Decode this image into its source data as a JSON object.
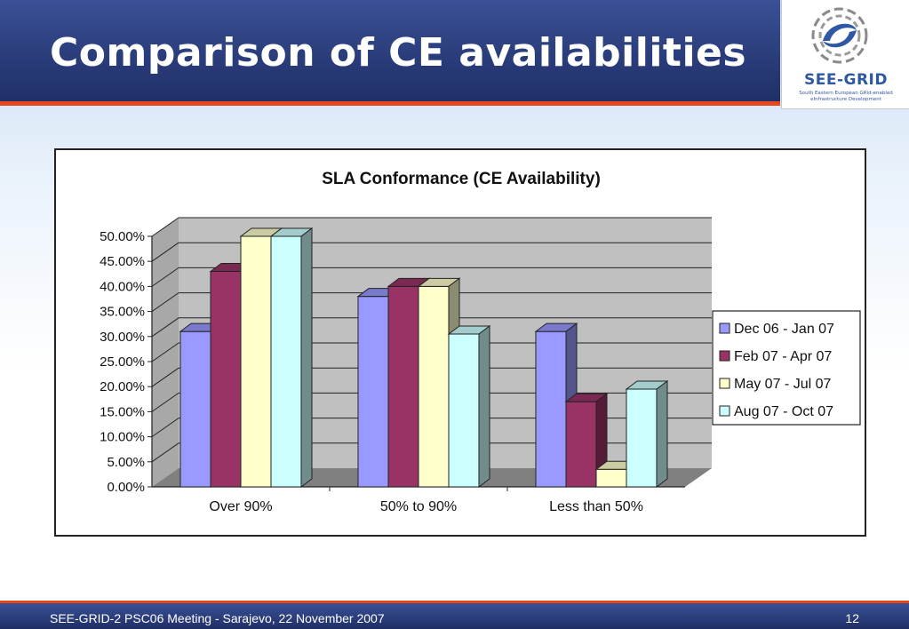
{
  "slide": {
    "title": "Comparison of CE availabilities",
    "footer": "SEE-GRID-2 PSC06 Meeting - Sarajevo, 22 November 2007",
    "page_number": "12"
  },
  "logo": {
    "name": "SEE-GRID",
    "subtitle_line1": "South Eastern European GRid-enabled",
    "subtitle_line2": "eInfrastructure Development"
  },
  "chart_data": {
    "type": "bar",
    "title": "SLA Conformance (CE Availability)",
    "xlabel": "",
    "ylabel": "",
    "categories": [
      "Over 90%",
      "50% to 90%",
      "Less than 50%"
    ],
    "series": [
      {
        "name": "Dec 06 - Jan 07",
        "color": "#9999ff",
        "values": [
          0.31,
          0.38,
          0.31
        ]
      },
      {
        "name": "Feb 07 - Apr 07",
        "color": "#993366",
        "values": [
          0.43,
          0.4,
          0.17
        ]
      },
      {
        "name": "May 07 - Jul 07",
        "color": "#ffffcc",
        "values": [
          0.5,
          0.4,
          0.035
        ]
      },
      {
        "name": "Aug 07 - Oct 07",
        "color": "#ccffff",
        "values": [
          0.5,
          0.305,
          0.195
        ]
      }
    ],
    "ylim": [
      0,
      0.5
    ],
    "yticks": [
      "0.00%",
      "5.00%",
      "10.00%",
      "15.00%",
      "20.00%",
      "25.00%",
      "30.00%",
      "35.00%",
      "40.00%",
      "45.00%",
      "50.00%"
    ],
    "grid": true,
    "legend": "right",
    "wall_color": "#c0c0c0",
    "floor_color": "#808080"
  }
}
